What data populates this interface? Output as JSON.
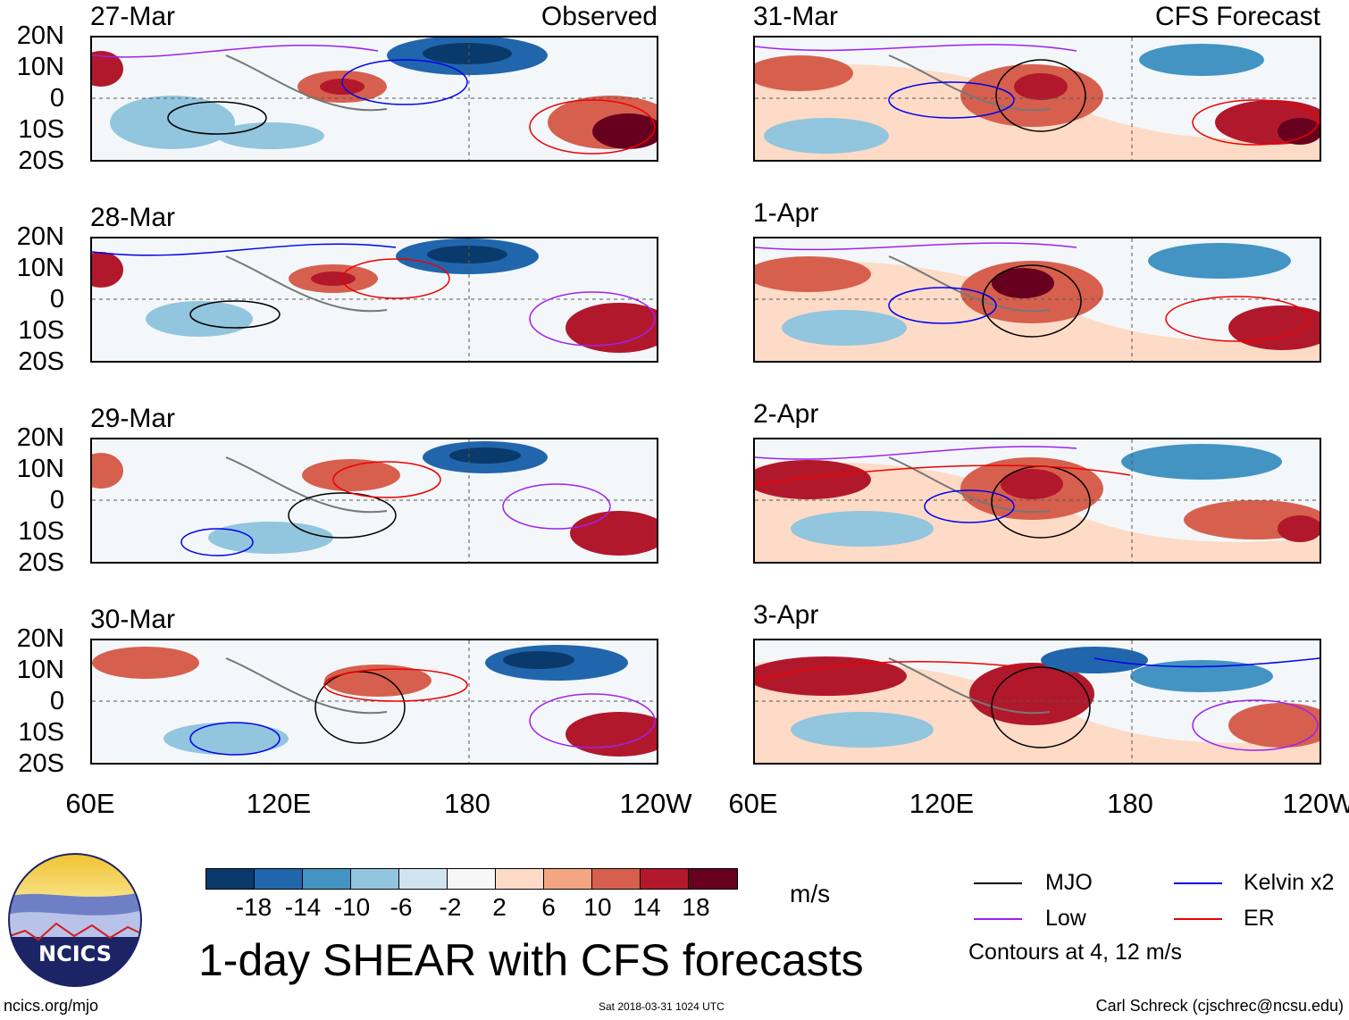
{
  "figure": {
    "title": "1-day SHEAR with CFS forecasts",
    "units_label": "m/s",
    "website": "ncics.org/mjo",
    "timestamp": "Sat 2018-03-31 1024 UTC",
    "author": "Carl Schreck (cjschrec@ncsu.edu)",
    "logo_text": "NCICS"
  },
  "axes": {
    "y_labels": [
      "20N",
      "10N",
      "0",
      "10S",
      "20S"
    ],
    "x_labels": [
      "60E",
      "120E",
      "180",
      "120W"
    ]
  },
  "columns": {
    "observed": {
      "label": "Observed",
      "dates": [
        "27-Mar",
        "28-Mar",
        "29-Mar",
        "30-Mar"
      ]
    },
    "forecast": {
      "label": "CFS Forecast",
      "dates": [
        "31-Mar",
        "1-Apr",
        "2-Apr",
        "3-Apr"
      ]
    }
  },
  "colorbar": {
    "ticks": [
      "-18",
      "-14",
      "-10",
      "-6",
      "-2",
      "2",
      "6",
      "10",
      "14",
      "18"
    ],
    "colors": [
      "#0a3a6b",
      "#2166ac",
      "#4393c3",
      "#92c5de",
      "#d1e5f0",
      "#f7f7f7",
      "#fddbc7",
      "#f4a582",
      "#d6604d",
      "#b2182b",
      "#67001f"
    ]
  },
  "legend": {
    "items": [
      {
        "label": "MJO",
        "color": "#000000"
      },
      {
        "label": "Kelvin x2",
        "color": "#0000ee"
      },
      {
        "label": "Low",
        "color": "#a020f0"
      },
      {
        "label": "ER",
        "color": "#ee0000"
      }
    ],
    "note": "Contours at 4, 12 m/s"
  }
}
